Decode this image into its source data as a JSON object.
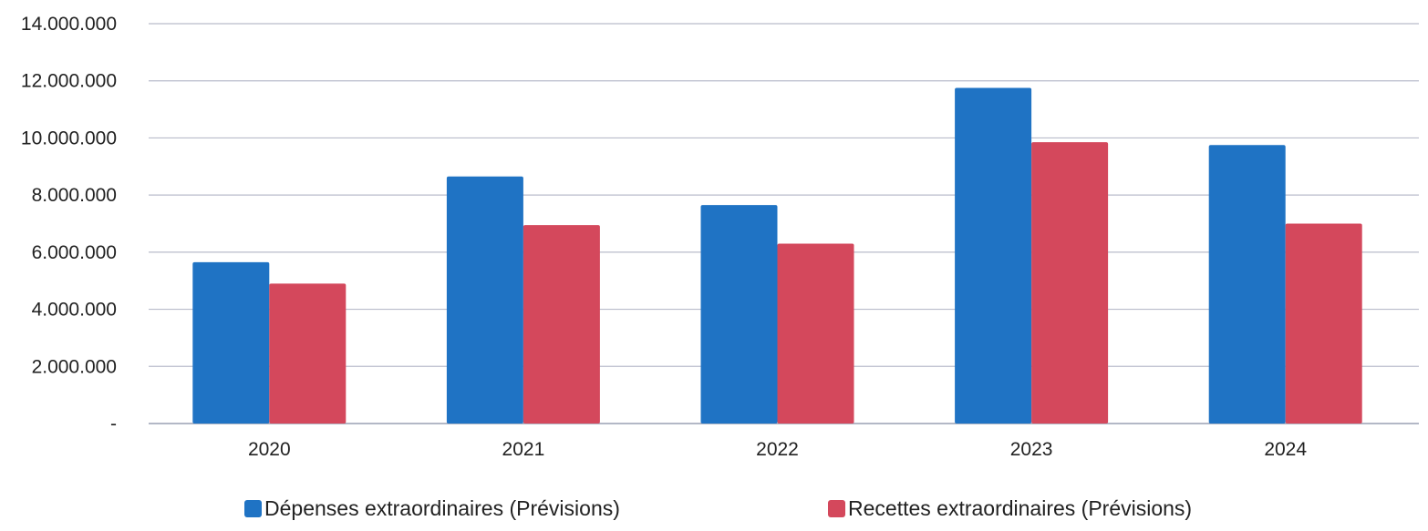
{
  "chart_data": {
    "type": "bar",
    "categories": [
      "2020",
      "2021",
      "2022",
      "2023",
      "2024"
    ],
    "series": [
      {
        "name": "Dépenses extraordinaires (Prévisions)",
        "color": "#1f73c4",
        "values": [
          5650000,
          8650000,
          7650000,
          11750000,
          9750000
        ]
      },
      {
        "name": "Recettes extraordinaires (Prévisions)",
        "color": "#d4485c",
        "values": [
          4900000,
          6950000,
          6300000,
          9850000,
          7000000
        ]
      }
    ],
    "y_ticks": [
      "-",
      "2.000.000",
      "4.000.000",
      "6.000.000",
      "8.000.000",
      "10.000.000",
      "12.000.000",
      "14.000.000"
    ],
    "ylim": [
      0,
      14000000
    ],
    "y_tick_step": 2000000,
    "grid": true,
    "legend_position": "bottom",
    "title": "",
    "xlabel": "",
    "ylabel": ""
  }
}
